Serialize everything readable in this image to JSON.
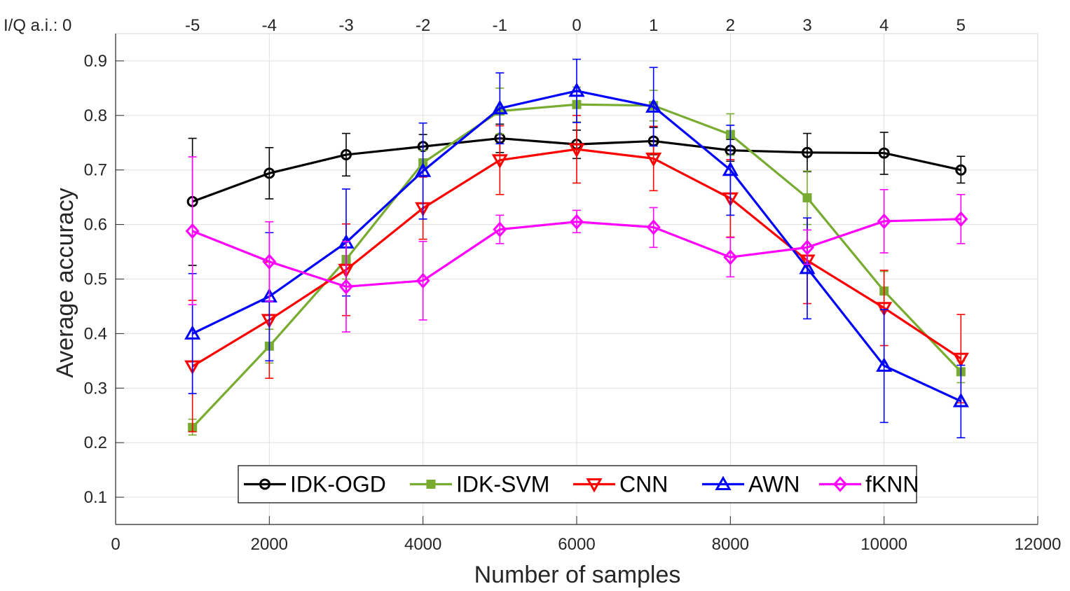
{
  "chart_data": {
    "type": "line",
    "xlabel": "Number of samples",
    "ylabel": "Average accuracy",
    "xlim": [
      0,
      12000
    ],
    "ylim": [
      0.05,
      0.95
    ],
    "xticks": [
      0,
      2000,
      4000,
      6000,
      8000,
      10000,
      12000
    ],
    "xtick_labels": [
      "0",
      "2000",
      "4000",
      "6000",
      "8000",
      "10000",
      "12000"
    ],
    "yticks": [
      0.1,
      0.2,
      0.3,
      0.4,
      0.5,
      0.6,
      0.7,
      0.8,
      0.9
    ],
    "ytick_labels": [
      "0.1",
      "0.2",
      "0.3",
      "0.4",
      "0.5",
      "0.6",
      "0.7",
      "0.8",
      "0.9"
    ],
    "grid": true,
    "top_axis": {
      "label": "I/Q a.i.: 0",
      "ticks": [
        1000,
        2000,
        3000,
        4000,
        5000,
        6000,
        7000,
        8000,
        9000,
        10000,
        11000
      ],
      "tick_labels": [
        "-5",
        "-4",
        "-3",
        "-2",
        "-1",
        "0",
        "1",
        "2",
        "3",
        "4",
        "5"
      ]
    },
    "legend_position": "bottom-center",
    "x": [
      1000,
      2000,
      3000,
      4000,
      5000,
      6000,
      7000,
      8000,
      9000,
      10000,
      11000
    ],
    "series": [
      {
        "name": "IDK-OGD",
        "color": "#000000",
        "marker": "circle",
        "values": [
          0.642,
          0.694,
          0.728,
          0.743,
          0.758,
          0.747,
          0.753,
          0.736,
          0.732,
          0.731,
          0.7
        ],
        "err_low": [
          0.525,
          0.647,
          0.689,
          0.72,
          0.732,
          0.721,
          0.728,
          0.716,
          0.697,
          0.692,
          0.676
        ],
        "err_high": [
          0.758,
          0.741,
          0.767,
          0.765,
          0.784,
          0.773,
          0.778,
          0.756,
          0.767,
          0.769,
          0.725
        ]
      },
      {
        "name": "IDK-SVM",
        "color": "#77ac30",
        "marker": "square",
        "values": [
          0.228,
          0.377,
          0.536,
          0.713,
          0.808,
          0.82,
          0.818,
          0.765,
          0.649,
          0.478,
          0.33
        ],
        "err_low": [
          0.214,
          0.346,
          0.5,
          0.69,
          0.766,
          0.788,
          0.79,
          0.727,
          0.6,
          0.442,
          0.31
        ],
        "err_high": [
          0.243,
          0.408,
          0.572,
          0.736,
          0.85,
          0.852,
          0.846,
          0.803,
          0.698,
          0.514,
          0.35
        ]
      },
      {
        "name": "CNN",
        "color": "#ff0000",
        "marker": "triangle-down",
        "values": [
          0.34,
          0.425,
          0.517,
          0.63,
          0.718,
          0.738,
          0.721,
          0.648,
          0.534,
          0.447,
          0.354
        ],
        "err_low": [
          0.22,
          0.318,
          0.433,
          0.573,
          0.655,
          0.676,
          0.662,
          0.577,
          0.455,
          0.378,
          0.273
        ],
        "err_high": [
          0.461,
          0.531,
          0.601,
          0.687,
          0.781,
          0.8,
          0.78,
          0.719,
          0.612,
          0.516,
          0.435
        ]
      },
      {
        "name": "AWN",
        "color": "#0000ff",
        "marker": "triangle-up",
        "values": [
          0.4,
          0.468,
          0.567,
          0.698,
          0.813,
          0.845,
          0.816,
          0.7,
          0.52,
          0.341,
          0.276
        ],
        "err_low": [
          0.29,
          0.35,
          0.469,
          0.61,
          0.748,
          0.787,
          0.744,
          0.617,
          0.427,
          0.237,
          0.209
        ],
        "err_high": [
          0.51,
          0.585,
          0.665,
          0.786,
          0.878,
          0.903,
          0.888,
          0.782,
          0.612,
          0.444,
          0.342
        ]
      },
      {
        "name": "fKNN",
        "color": "#ff00ff",
        "marker": "diamond",
        "values": [
          0.588,
          0.532,
          0.486,
          0.497,
          0.591,
          0.605,
          0.595,
          0.54,
          0.558,
          0.606,
          0.61
        ],
        "err_low": [
          0.453,
          0.459,
          0.403,
          0.425,
          0.565,
          0.585,
          0.558,
          0.504,
          0.527,
          0.548,
          0.565
        ],
        "err_high": [
          0.724,
          0.605,
          0.569,
          0.569,
          0.617,
          0.626,
          0.631,
          0.576,
          0.59,
          0.664,
          0.655
        ]
      }
    ]
  }
}
